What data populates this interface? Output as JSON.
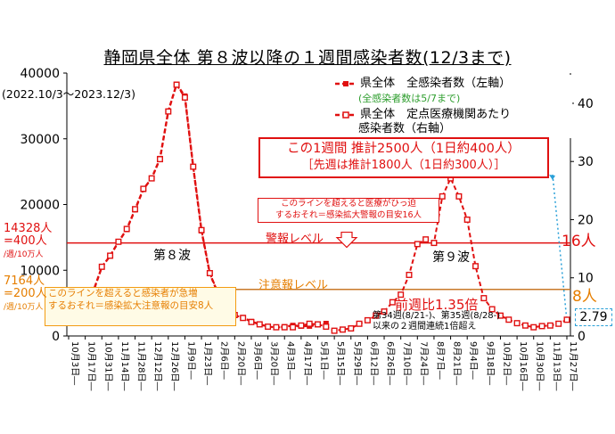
{
  "title": "静岡県全体 第８波以降の１週間感染者数(12/3まで)",
  "period": "(2022.10/3〜2023.12/3)",
  "legend": {
    "series1": "県全体　全感染者数（左軸）",
    "series1_note": "(全感染者数は5/7まで)",
    "series2_line1": "県全体　定点医療機関あたり",
    "series2_line2": "感染者数（右軸）"
  },
  "box_main": {
    "line1": "この1週間 推計2500人（1日約400人）",
    "line2": "［先週は推計1800人（1日約300人）］"
  },
  "box_warning": {
    "line1": "このラインを超えると医療がひっ迫",
    "line2": "するおそれ＝感染拡大警報の目安16人"
  },
  "box_caution": {
    "line1": "このラインを超えると感染者が急増",
    "line2": "するおそれ＝感染拡大注意報の目安8人"
  },
  "levels": {
    "warning_label": "警報レベル",
    "caution_label": "注意報レベル",
    "warning_left_1": "14328人",
    "warning_left_2": "=400人",
    "warning_left_3": "/週/10万人",
    "caution_left_1": "7164人",
    "caution_left_2": "=200人",
    "caution_left_3": "/週/10万人",
    "warning_right": "16人",
    "caution_right": "8人"
  },
  "annotations": {
    "wave8": "第８波",
    "wave9": "第９波",
    "ratio": "前週比1.35倍",
    "ratio_note_1": "第34週(8/21-)、第35週(8/28-)",
    "ratio_note_2": "以来の２週間連続1倍超え",
    "last_value": "2.79"
  },
  "colors": {
    "series": "#e01010",
    "warning": "#e01010",
    "caution": "#c87a2a",
    "highlight": "#2aa0d8"
  },
  "chart_data": {
    "type": "line",
    "x": [
      "10月3日",
      "10月10日",
      "10月17日",
      "10月24日",
      "10月31日",
      "11月7日",
      "11月14日",
      "11月21日",
      "11月28日",
      "12月5日",
      "12月12日",
      "12月19日",
      "12月26日",
      "1月2日",
      "1月9日",
      "1月16日",
      "1月23日",
      "1月30日",
      "2月6日",
      "2月13日",
      "2月20日",
      "2月27日",
      "3月6日",
      "3月13日",
      "3月20日",
      "3月27日",
      "4月3日",
      "4月10日",
      "4月17日",
      "4月24日",
      "5月1日",
      "5月8日",
      "5月15日",
      "5月22日",
      "5月29日",
      "6月5日",
      "6月12日",
      "6月19日",
      "6月26日",
      "7月3日",
      "7月10日",
      "7月17日",
      "7月24日",
      "7月31日",
      "8月7日",
      "8月14日",
      "8月21日",
      "8月28日",
      "9月4日",
      "9月11日",
      "9月18日",
      "9月25日",
      "10月2日",
      "10月9日",
      "10月16日",
      "10月23日",
      "10月30日",
      "11月6日",
      "11月13日",
      "11月20日",
      "11月27日"
    ],
    "x_tick_labels": [
      "10月3日",
      "10月17日",
      "10月31日",
      "11月14日",
      "11月28日",
      "12月12日",
      "12月26日",
      "1月9日",
      "1月23日",
      "2月6日",
      "2月20日",
      "3月6日",
      "3月20日",
      "4月3日",
      "4月17日",
      "5月1日",
      "5月15日",
      "5月29日",
      "6月12日",
      "6月26日",
      "7月10日",
      "7月24日",
      "8月7日",
      "8月21日",
      "9月4日",
      "9月18日",
      "10月2日",
      "10月16日",
      "10月30日",
      "11月13日",
      "11月27日"
    ],
    "series": [
      {
        "name": "県全体　全感染者数（左軸）",
        "axis": "left",
        "values": [
          6300,
          6500,
          6800,
          6900,
          10500,
          12200,
          14300,
          16200,
          19200,
          22300,
          24000,
          27000,
          34200,
          38300,
          36500,
          25700,
          16000,
          9500,
          6400,
          4200,
          3200,
          2800,
          2200,
          1800,
          1400,
          1300,
          1400,
          1600,
          1500,
          1500,
          1700,
          1900,
          null,
          null,
          null,
          null,
          null,
          null,
          null,
          null,
          null,
          null,
          null,
          null,
          null,
          null,
          null,
          null,
          null,
          null,
          null,
          null,
          null,
          null,
          null,
          null,
          null,
          null,
          null,
          null,
          null
        ]
      },
      {
        "name": "県全体　定点医療機関あたり感染者数（右軸）",
        "axis": "right",
        "values": [
          7.2,
          7.4,
          7.6,
          7.9,
          11.9,
          13.8,
          16.2,
          18.4,
          21.8,
          25.3,
          27.1,
          30.4,
          38.6,
          43.2,
          41.0,
          29.1,
          18.2,
          10.8,
          7.4,
          4.8,
          3.6,
          3.1,
          2.4,
          2.0,
          1.6,
          1.5,
          1.5,
          1.5,
          1.8,
          2.1,
          2.0,
          1.6,
          0.9,
          1.1,
          1.3,
          2.1,
          2.7,
          3.5,
          4.2,
          5.8,
          7.1,
          10.5,
          15.8,
          16.6,
          16.0,
          24.0,
          27.1,
          24.0,
          20.0,
          12.0,
          6.5,
          4.6,
          3.5,
          2.8,
          2.2,
          1.8,
          1.5,
          1.7,
          1.8,
          2.1,
          2.79
        ]
      }
    ],
    "y_left": {
      "min": 0,
      "max": 40000,
      "ticks": [
        0,
        10000,
        20000,
        30000,
        40000
      ]
    },
    "y_right": {
      "min": 0,
      "max": 45.2,
      "ticks": [
        0,
        10,
        20,
        30,
        40
      ]
    },
    "reference_lines": [
      {
        "label": "警報レベル",
        "left_value": 14328,
        "right_value": 16
      },
      {
        "label": "注意報レベル",
        "left_value": 7164,
        "right_value": 8
      }
    ],
    "grid": false,
    "legend_position": "top-right"
  }
}
